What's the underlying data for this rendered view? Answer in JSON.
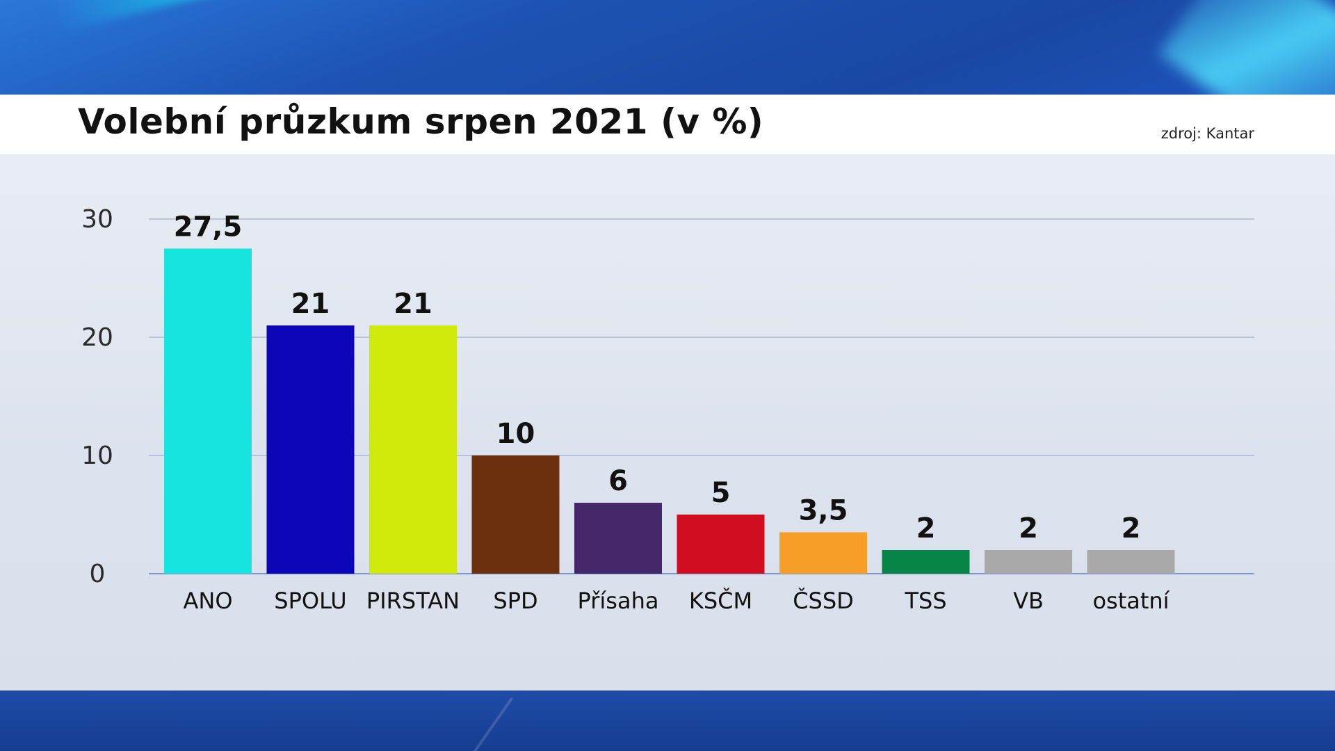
{
  "header": {
    "title": "Volební průzkum srpen 2021 (v %)",
    "source": "zdroj: Kantar"
  },
  "chart_data": {
    "type": "bar",
    "title": "Volební průzkum srpen 2021 (v %)",
    "xlabel": "",
    "ylabel": "",
    "ylim": [
      0,
      30
    ],
    "yticks": [
      0,
      10,
      20,
      30
    ],
    "grid": true,
    "categories": [
      "ANO",
      "SPOLU",
      "PIRSTAN",
      "SPD",
      "Přísaha",
      "KSČM",
      "ČSSD",
      "TSS",
      "VB",
      "ostatní"
    ],
    "values": [
      27.5,
      21,
      21,
      10,
      6,
      5,
      3.5,
      2,
      2,
      2
    ],
    "value_labels": [
      "27,5",
      "21",
      "21",
      "10",
      "6",
      "5",
      "3,5",
      "2",
      "2",
      "2"
    ],
    "colors": [
      "#17e3df",
      "#0d05b8",
      "#cfe90a",
      "#6d300f",
      "#432768",
      "#d10e1f",
      "#f79e28",
      "#078448",
      "#a9a9a9",
      "#a9a9a9"
    ]
  }
}
